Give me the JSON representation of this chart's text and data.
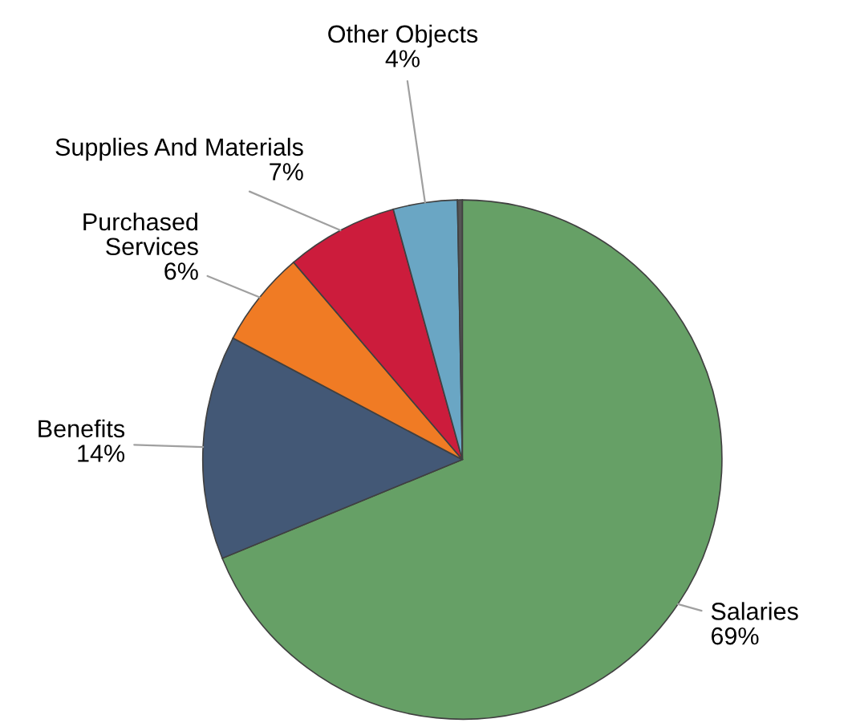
{
  "chart_data": {
    "type": "pie",
    "categories": [
      "Salaries",
      "Benefits",
      "Purchased Services",
      "Supplies And Materials",
      "Other Objects",
      null
    ],
    "values": [
      69,
      14,
      6,
      7,
      4,
      0.3
    ],
    "value_labels": [
      "69%",
      "14%",
      "6%",
      "7%",
      "4%",
      null
    ],
    "colors": [
      "#66a066",
      "#435876",
      "#f07b24",
      "#cc1c3c",
      "#6aa6c4",
      "#555555"
    ]
  }
}
